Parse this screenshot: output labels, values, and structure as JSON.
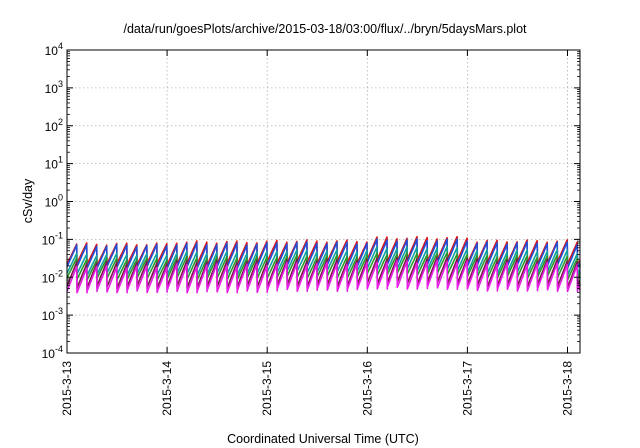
{
  "chart_data": {
    "type": "line",
    "title": "/data/run/goesPlots/archive/2015-03-18/03:00/flux/../bryn/5daysMars.plot",
    "xlabel": "Coordinated Universal Time (UTC)",
    "ylabel": "cSv/day",
    "yscale": "log",
    "ylim": [
      0.0001,
      10000
    ],
    "xlim": [
      "2015-03-13 00:00",
      "2015-03-18 03:00"
    ],
    "x_ticks": [
      "2015-3-13",
      "2015-3-14",
      "2015-3-15",
      "2015-3-16",
      "2015-3-17",
      "2015-3-18"
    ],
    "y_ticks": [
      {
        "base": "10",
        "exp": "4"
      },
      {
        "base": "10",
        "exp": "3"
      },
      {
        "base": "10",
        "exp": "2"
      },
      {
        "base": "10",
        "exp": "1"
      },
      {
        "base": "10",
        "exp": "0"
      },
      {
        "base": "10",
        "exp": "-1"
      },
      {
        "base": "10",
        "exp": "-2"
      },
      {
        "base": "10",
        "exp": "-3"
      },
      {
        "base": "10",
        "exp": "-4"
      }
    ],
    "grid": true,
    "pattern": {
      "cycles_per_day": 10,
      "shape": "sawtooth: sharp rise at start of each cycle, decay toward the next"
    },
    "series": [
      {
        "color": "#d8161a",
        "peak_by_day": [
          0.075,
          0.085,
          0.09,
          0.11,
          0.09,
          0.085
        ],
        "trough_by_day": [
          0.022,
          0.022,
          0.025,
          0.028,
          0.024,
          0.022
        ]
      },
      {
        "color": "#2250d8",
        "peak_by_day": [
          0.068,
          0.075,
          0.08,
          0.095,
          0.08,
          0.075
        ],
        "trough_by_day": [
          0.018,
          0.018,
          0.02,
          0.023,
          0.02,
          0.018
        ]
      },
      {
        "color": "#0fa0a0",
        "peak_by_day": [
          0.04,
          0.045,
          0.05,
          0.06,
          0.05,
          0.045
        ],
        "trough_by_day": [
          0.012,
          0.012,
          0.014,
          0.016,
          0.013,
          0.012
        ]
      },
      {
        "color": "#2a9a2a",
        "peak_by_day": [
          0.03,
          0.033,
          0.036,
          0.042,
          0.036,
          0.033
        ],
        "trough_by_day": [
          0.009,
          0.009,
          0.01,
          0.012,
          0.01,
          0.009
        ]
      },
      {
        "color": "#7a1a4a",
        "peak_by_day": [
          0.024,
          0.026,
          0.028,
          0.032,
          0.028,
          0.026
        ],
        "trough_by_day": [
          0.0055,
          0.0055,
          0.006,
          0.007,
          0.006,
          0.0055
        ]
      },
      {
        "color": "#e61ee6",
        "peak_by_day": [
          0.019,
          0.021,
          0.023,
          0.026,
          0.023,
          0.021
        ],
        "trough_by_day": [
          0.0042,
          0.0042,
          0.0046,
          0.0052,
          0.0046,
          0.0042
        ]
      }
    ]
  }
}
